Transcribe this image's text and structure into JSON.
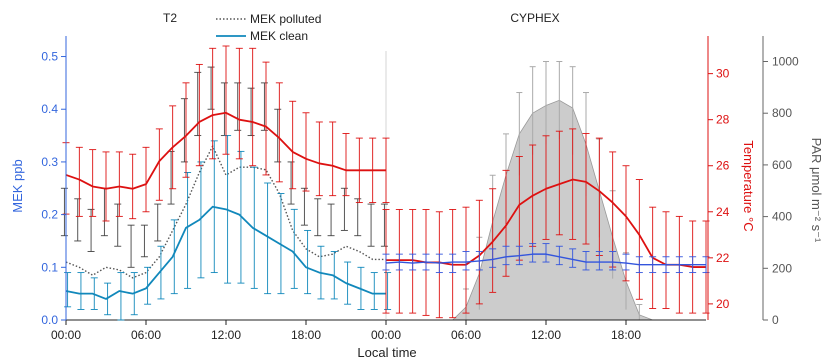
{
  "colors": {
    "mek_left": "#3366dd",
    "temperature": "#dd1111",
    "par": "#888888",
    "par_fill": "#cccccc",
    "mek_clean": "#1188bb",
    "mek_polluted": "#555555",
    "mek_right": "#3355dd",
    "axis_black": "#222222"
  },
  "chart_data": {
    "type": "line",
    "panels": [
      {
        "label": "T2",
        "x_range_hours": [
          0,
          24
        ]
      },
      {
        "label": "CYPHEX",
        "x_range_hours": [
          24,
          48
        ]
      }
    ],
    "xlabel": "Local time",
    "x_tick_labels": [
      "00:00",
      "06:00",
      "12:00",
      "18:00",
      "00:00",
      "06:00",
      "12:00",
      "18:00"
    ],
    "x_tick_hours": [
      0,
      6,
      12,
      18,
      24,
      30,
      36,
      42
    ],
    "x_range_hours": [
      0,
      48
    ],
    "axes": {
      "mek": {
        "label": "MEK ppb",
        "range": [
          0,
          0.52
        ],
        "ticks": [
          0.0,
          0.1,
          0.2,
          0.3,
          0.4,
          0.5
        ],
        "tick_labels": [
          "0.0",
          "0.1",
          "0.2",
          "0.3",
          "0.4",
          "0.5"
        ]
      },
      "temperature": {
        "label": "Temperature °C",
        "range": [
          19.3,
          31.2
        ],
        "ticks": [
          20,
          22,
          24,
          26,
          28,
          30
        ],
        "tick_labels": [
          "20",
          "22",
          "24",
          "26",
          "28",
          "30"
        ]
      },
      "par": {
        "label": "PAR μmol m⁻² s⁻¹",
        "range": [
          0,
          1060
        ],
        "ticks": [
          0,
          200,
          400,
          600,
          800,
          1000
        ],
        "tick_labels": [
          "0",
          "200",
          "400",
          "600",
          "800",
          "1000"
        ]
      }
    },
    "legend": {
      "placement": "top-left",
      "entries": [
        "MEK polluted",
        "MEK clean"
      ]
    },
    "series": [
      {
        "name": "MEK polluted",
        "axis": "mek",
        "style": "dotted",
        "panel": "T2",
        "x": [
          0,
          1,
          2,
          3,
          4,
          5,
          6,
          7,
          8,
          9,
          10,
          11,
          12,
          13,
          14,
          15,
          16,
          17,
          18,
          19,
          20,
          21,
          22,
          23,
          24
        ],
        "values": [
          0.11,
          0.1,
          0.085,
          0.1,
          0.095,
          0.08,
          0.09,
          0.12,
          0.17,
          0.22,
          0.28,
          0.33,
          0.275,
          0.29,
          0.29,
          0.285,
          0.24,
          0.17,
          0.135,
          0.12,
          0.125,
          0.14,
          0.13,
          0.115,
          0.115
        ],
        "error_low": [
          0.16,
          0.15,
          0.13,
          0.16,
          0.14,
          0.1,
          0.12,
          0.15,
          0.22,
          0.3,
          0.35,
          0.4,
          0.35,
          0.36,
          0.35,
          0.36,
          0.3,
          0.22,
          0.18,
          0.16,
          0.16,
          0.17,
          0.16,
          0.14,
          0.14
        ],
        "error_high": [
          0.25,
          0.23,
          0.21,
          0.25,
          0.22,
          0.18,
          0.18,
          0.22,
          0.32,
          0.42,
          0.47,
          0.48,
          0.45,
          0.45,
          0.44,
          0.45,
          0.4,
          0.3,
          0.25,
          0.23,
          0.22,
          0.25,
          0.23,
          0.22,
          0.22
        ]
      },
      {
        "name": "MEK clean",
        "axis": "mek",
        "style": "solid",
        "panel": "T2",
        "x": [
          0,
          1,
          2,
          3,
          4,
          5,
          6,
          7,
          8,
          9,
          10,
          11,
          12,
          13,
          14,
          15,
          16,
          17,
          18,
          19,
          20,
          21,
          22,
          23,
          24
        ],
        "values": [
          0.055,
          0.05,
          0.05,
          0.04,
          0.055,
          0.05,
          0.06,
          0.09,
          0.12,
          0.175,
          0.19,
          0.215,
          0.21,
          0.2,
          0.175,
          0.16,
          0.145,
          0.13,
          0.1,
          0.09,
          0.085,
          0.07,
          0.06,
          0.05,
          0.05
        ],
        "error_low": [
          0.025,
          0.02,
          0.02,
          0.01,
          0.0,
          0.01,
          0.03,
          0.04,
          0.05,
          0.06,
          0.08,
          0.09,
          0.07,
          0.07,
          0.06,
          0.05,
          0.05,
          0.06,
          0.05,
          0.04,
          0.04,
          0.03,
          0.02,
          0.02,
          0.02
        ],
        "error_high": [
          0.09,
          0.09,
          0.08,
          0.07,
          0.09,
          0.09,
          0.1,
          0.14,
          0.19,
          0.28,
          0.3,
          0.34,
          0.35,
          0.32,
          0.29,
          0.26,
          0.24,
          0.21,
          0.17,
          0.14,
          0.13,
          0.11,
          0.1,
          0.09,
          0.09
        ]
      },
      {
        "name": "Temperature T2",
        "axis": "temperature",
        "style": "solid",
        "panel": "T2",
        "x": [
          0,
          1,
          2,
          3,
          4,
          5,
          6,
          7,
          8,
          9,
          10,
          11,
          12,
          13,
          14,
          15,
          16,
          17,
          18,
          19,
          20,
          21,
          22,
          23,
          24
        ],
        "values": [
          25.6,
          25.4,
          25.1,
          25.0,
          25.1,
          25.0,
          25.2,
          26.2,
          26.8,
          27.3,
          27.9,
          28.2,
          28.3,
          28.0,
          27.9,
          27.7,
          27.2,
          26.6,
          26.3,
          26.1,
          26.0,
          25.8,
          25.8,
          25.8,
          25.8
        ],
        "error_low": [
          23.9,
          23.8,
          23.8,
          23.6,
          23.8,
          23.7,
          24.0,
          24.5,
          25.0,
          25.5,
          26.0,
          26.3,
          26.5,
          26.3,
          26.0,
          25.6,
          25.3,
          25.0,
          24.9,
          24.7,
          24.7,
          24.7,
          24.4,
          24.4,
          24.4
        ],
        "error_high": [
          27.0,
          26.8,
          26.7,
          26.6,
          26.6,
          26.5,
          26.8,
          27.6,
          28.6,
          29.6,
          30.4,
          31.1,
          31.2,
          31.1,
          31.1,
          30.5,
          29.6,
          28.8,
          28.3,
          27.9,
          27.9,
          27.4,
          27.2,
          27.2,
          27.2
        ]
      },
      {
        "name": "PAR",
        "axis": "par",
        "style": "area",
        "panel": "CYPHEX",
        "x": [
          24,
          25,
          26,
          27,
          28,
          29,
          30,
          31,
          32,
          33,
          34,
          35,
          36,
          37,
          38,
          39,
          40,
          41,
          42,
          43,
          44,
          45,
          46,
          47,
          48
        ],
        "values": [
          0,
          0,
          0,
          0,
          0,
          0,
          50,
          180,
          380,
          560,
          720,
          800,
          830,
          850,
          820,
          680,
          500,
          320,
          150,
          20,
          0,
          0,
          0,
          0,
          0
        ],
        "error_low": [
          0,
          0,
          0,
          0,
          0,
          0,
          0,
          40,
          200,
          400,
          560,
          640,
          680,
          700,
          640,
          480,
          320,
          160,
          40,
          0,
          0,
          0,
          0,
          0,
          0
        ],
        "error_high": [
          0,
          0,
          0,
          0,
          0,
          0,
          120,
          320,
          560,
          720,
          880,
          980,
          1000,
          1000,
          980,
          880,
          700,
          500,
          260,
          60,
          0,
          0,
          0,
          0,
          0
        ]
      },
      {
        "name": "Temperature CYPHEX",
        "axis": "temperature",
        "style": "solid",
        "panel": "CYPHEX",
        "x": [
          24,
          25,
          26,
          27,
          28,
          29,
          30,
          31,
          32,
          33,
          34,
          35,
          36,
          37,
          38,
          39,
          40,
          41,
          42,
          43,
          44,
          45,
          46,
          47,
          48
        ],
        "values": [
          21.9,
          21.9,
          21.9,
          21.8,
          21.8,
          21.7,
          21.7,
          22.1,
          22.7,
          23.4,
          24.3,
          24.7,
          25.0,
          25.2,
          25.4,
          25.3,
          24.9,
          24.4,
          23.8,
          23.0,
          22.0,
          21.7,
          21.7,
          21.6,
          21.6
        ],
        "error_low": [
          19.6,
          19.6,
          19.6,
          19.5,
          19.4,
          19.4,
          19.6,
          20.0,
          20.5,
          21.2,
          21.9,
          22.5,
          22.8,
          23.0,
          22.8,
          22.6,
          22.1,
          21.6,
          21.0,
          20.2,
          19.8,
          19.8,
          19.6,
          19.6,
          19.6
        ],
        "error_high": [
          24.1,
          24.1,
          24.1,
          24.1,
          24.0,
          24.1,
          24.2,
          24.5,
          25.0,
          25.8,
          26.4,
          26.9,
          27.3,
          27.5,
          27.6,
          27.4,
          27.2,
          26.6,
          26.0,
          25.4,
          24.2,
          24.0,
          23.8,
          23.6,
          23.6
        ]
      },
      {
        "name": "MEK CYPHEX",
        "axis": "mek",
        "style": "solid",
        "panel": "CYPHEX",
        "x": [
          24,
          25,
          26,
          27,
          28,
          29,
          30,
          31,
          32,
          33,
          34,
          35,
          36,
          37,
          38,
          39,
          40,
          41,
          42,
          43,
          44,
          45,
          46,
          47,
          48
        ],
        "values": [
          0.108,
          0.11,
          0.108,
          0.11,
          0.108,
          0.11,
          0.11,
          0.112,
          0.115,
          0.12,
          0.122,
          0.125,
          0.125,
          0.12,
          0.115,
          0.11,
          0.11,
          0.11,
          0.108,
          0.105,
          0.105,
          0.105,
          0.105,
          0.105,
          0.105
        ],
        "error_low": [
          0.095,
          0.095,
          0.095,
          0.095,
          0.09,
          0.09,
          0.095,
          0.095,
          0.1,
          0.105,
          0.105,
          0.11,
          0.11,
          0.105,
          0.1,
          0.095,
          0.095,
          0.095,
          0.095,
          0.09,
          0.09,
          0.09,
          0.09,
          0.09,
          0.09
        ],
        "error_high": [
          0.125,
          0.125,
          0.125,
          0.125,
          0.125,
          0.125,
          0.13,
          0.13,
          0.135,
          0.14,
          0.14,
          0.145,
          0.145,
          0.14,
          0.135,
          0.13,
          0.13,
          0.13,
          0.125,
          0.12,
          0.12,
          0.12,
          0.12,
          0.12,
          0.12
        ]
      }
    ]
  }
}
